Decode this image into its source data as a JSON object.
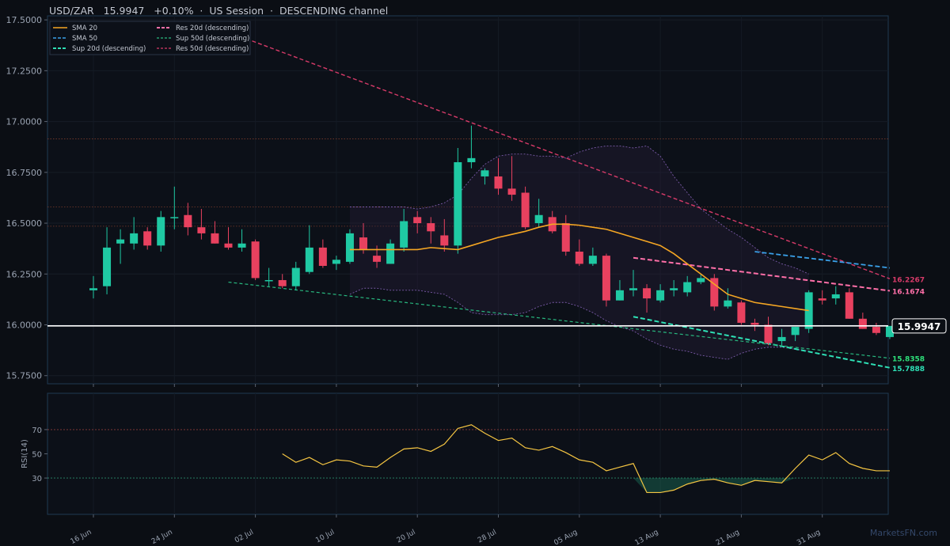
{
  "header": {
    "symbol": "USD/ZAR",
    "price": "15.9947",
    "change": "+0.10%",
    "session": "US Session",
    "channel": "DESCENDING channel"
  },
  "watermark": "MarketsFN.com",
  "chart_data": {
    "type": "candlestick",
    "title": "USD/ZAR  15.9947  +0.10%  ·  US Session  ·  DESCENDING channel",
    "x_tick_labels": [
      "16 Jun",
      "24 Jun",
      "02 Jul",
      "10 Jul",
      "20 Jul",
      "28 Jul",
      "05 Aug",
      "13 Aug",
      "21 Aug",
      "31 Aug"
    ],
    "x_tick_index": [
      0,
      6,
      12,
      18,
      24,
      30,
      36,
      42,
      48,
      54
    ],
    "y_ticks": [
      "15.7500",
      "16.0000",
      "16.2500",
      "16.5000",
      "16.7500",
      "17.0000",
      "17.2500",
      "17.5000"
    ],
    "ylim": [
      15.71,
      17.52
    ],
    "grid": true,
    "legend_position": "top-left",
    "last_price": 15.9947,
    "last_price_label": "15.9947",
    "colors": {
      "up": "#1fc9a3",
      "down": "#e8415f",
      "sma20": "#f5a623",
      "sma50": "#3aa0e8",
      "res20": "#ff6fa8",
      "sup20": "#2ee0b5",
      "res50": "#d63a68",
      "sup50": "#28b87f",
      "bands": "#7a5aa8",
      "price_line": "#ffffff"
    },
    "candles": [
      {
        "o": 16.17,
        "h": 16.24,
        "l": 16.13,
        "c": 16.18
      },
      {
        "o": 16.19,
        "h": 16.48,
        "l": 16.15,
        "c": 16.38
      },
      {
        "o": 16.4,
        "h": 16.47,
        "l": 16.3,
        "c": 16.42
      },
      {
        "o": 16.4,
        "h": 16.53,
        "l": 16.37,
        "c": 16.45
      },
      {
        "o": 16.46,
        "h": 16.48,
        "l": 16.37,
        "c": 16.39
      },
      {
        "o": 16.39,
        "h": 16.56,
        "l": 16.36,
        "c": 16.53
      },
      {
        "o": 16.53,
        "h": 16.68,
        "l": 16.47,
        "c": 16.53
      },
      {
        "o": 16.54,
        "h": 16.6,
        "l": 16.44,
        "c": 16.48
      },
      {
        "o": 16.48,
        "h": 16.57,
        "l": 16.42,
        "c": 16.45
      },
      {
        "o": 16.45,
        "h": 16.51,
        "l": 16.4,
        "c": 16.4
      },
      {
        "o": 16.4,
        "h": 16.48,
        "l": 16.37,
        "c": 16.38
      },
      {
        "o": 16.38,
        "h": 16.47,
        "l": 16.36,
        "c": 16.4
      },
      {
        "o": 16.41,
        "h": 16.42,
        "l": 16.22,
        "c": 16.23
      },
      {
        "o": 16.22,
        "h": 16.28,
        "l": 16.19,
        "c": 16.22
      },
      {
        "o": 16.22,
        "h": 16.25,
        "l": 16.18,
        "c": 16.19
      },
      {
        "o": 16.19,
        "h": 16.31,
        "l": 16.17,
        "c": 16.28
      },
      {
        "o": 16.26,
        "h": 16.49,
        "l": 16.25,
        "c": 16.38
      },
      {
        "o": 16.38,
        "h": 16.42,
        "l": 16.28,
        "c": 16.29
      },
      {
        "o": 16.3,
        "h": 16.34,
        "l": 16.27,
        "c": 16.32
      },
      {
        "o": 16.31,
        "h": 16.47,
        "l": 16.3,
        "c": 16.45
      },
      {
        "o": 16.43,
        "h": 16.5,
        "l": 16.35,
        "c": 16.37
      },
      {
        "o": 16.34,
        "h": 16.39,
        "l": 16.28,
        "c": 16.31
      },
      {
        "o": 16.3,
        "h": 16.42,
        "l": 16.3,
        "c": 16.4
      },
      {
        "o": 16.38,
        "h": 16.57,
        "l": 16.36,
        "c": 16.51
      },
      {
        "o": 16.53,
        "h": 16.56,
        "l": 16.45,
        "c": 16.5
      },
      {
        "o": 16.5,
        "h": 16.53,
        "l": 16.4,
        "c": 16.46
      },
      {
        "o": 16.44,
        "h": 16.52,
        "l": 16.36,
        "c": 16.39
      },
      {
        "o": 16.39,
        "h": 16.87,
        "l": 16.35,
        "c": 16.8
      },
      {
        "o": 16.8,
        "h": 16.98,
        "l": 16.77,
        "c": 16.82
      },
      {
        "o": 16.73,
        "h": 16.77,
        "l": 16.69,
        "c": 16.76
      },
      {
        "o": 16.73,
        "h": 16.82,
        "l": 16.64,
        "c": 16.67
      },
      {
        "o": 16.67,
        "h": 16.83,
        "l": 16.61,
        "c": 16.64
      },
      {
        "o": 16.65,
        "h": 16.68,
        "l": 16.47,
        "c": 16.48
      },
      {
        "o": 16.5,
        "h": 16.62,
        "l": 16.48,
        "c": 16.54
      },
      {
        "o": 16.53,
        "h": 16.56,
        "l": 16.45,
        "c": 16.46
      },
      {
        "o": 16.5,
        "h": 16.54,
        "l": 16.34,
        "c": 16.36
      },
      {
        "o": 16.36,
        "h": 16.42,
        "l": 16.29,
        "c": 16.3
      },
      {
        "o": 16.3,
        "h": 16.38,
        "l": 16.29,
        "c": 16.34
      },
      {
        "o": 16.34,
        "h": 16.35,
        "l": 16.09,
        "c": 16.12
      },
      {
        "o": 16.12,
        "h": 16.22,
        "l": 16.12,
        "c": 16.17
      },
      {
        "o": 16.17,
        "h": 16.27,
        "l": 16.14,
        "c": 16.18
      },
      {
        "o": 16.18,
        "h": 16.2,
        "l": 16.06,
        "c": 16.13
      },
      {
        "o": 16.12,
        "h": 16.2,
        "l": 16.11,
        "c": 16.17
      },
      {
        "o": 16.17,
        "h": 16.22,
        "l": 16.14,
        "c": 16.18
      },
      {
        "o": 16.16,
        "h": 16.24,
        "l": 16.14,
        "c": 16.21
      },
      {
        "o": 16.21,
        "h": 16.25,
        "l": 16.2,
        "c": 16.23
      },
      {
        "o": 16.23,
        "h": 16.25,
        "l": 16.07,
        "c": 16.09
      },
      {
        "o": 16.09,
        "h": 16.18,
        "l": 16.08,
        "c": 16.12
      },
      {
        "o": 16.11,
        "h": 16.12,
        "l": 16.0,
        "c": 16.01
      },
      {
        "o": 16.01,
        "h": 16.03,
        "l": 15.97,
        "c": 16.0
      },
      {
        "o": 16.0,
        "h": 16.04,
        "l": 15.9,
        "c": 15.91
      },
      {
        "o": 15.92,
        "h": 15.98,
        "l": 15.9,
        "c": 15.94
      },
      {
        "o": 15.95,
        "h": 15.99,
        "l": 15.92,
        "c": 15.99
      },
      {
        "o": 15.98,
        "h": 16.17,
        "l": 15.96,
        "c": 16.16
      },
      {
        "o": 16.13,
        "h": 16.17,
        "l": 16.1,
        "c": 16.12
      },
      {
        "o": 16.13,
        "h": 16.19,
        "l": 16.1,
        "c": 16.15
      },
      {
        "o": 16.16,
        "h": 16.18,
        "l": 16.03,
        "c": 16.03
      },
      {
        "o": 16.03,
        "h": 16.06,
        "l": 15.98,
        "c": 15.98
      },
      {
        "o": 15.99,
        "h": 16.01,
        "l": 15.95,
        "c": 15.96
      },
      {
        "o": 15.94,
        "h": 15.99,
        "l": 15.93,
        "c": 15.9947
      }
    ],
    "sma20": {
      "name": "SMA 20",
      "start_index": 19,
      "values": [
        16.37,
        16.37,
        16.37,
        16.37,
        16.37,
        16.37,
        16.38,
        16.375,
        16.37,
        16.39,
        16.41,
        16.43,
        16.445,
        16.46,
        16.48,
        16.495,
        16.495,
        16.49,
        16.48,
        16.47,
        16.45,
        16.43,
        16.41,
        16.39,
        16.35,
        16.3,
        16.25,
        16.2,
        16.15,
        16.13,
        16.11,
        16.1,
        16.09,
        16.08,
        16.07
      ]
    },
    "sma50": {
      "name": "SMA 50",
      "x": [
        49,
        59
      ],
      "y": [
        16.36,
        16.28
      ]
    },
    "bollinger": {
      "start_index": 19,
      "upper": [
        16.58,
        16.58,
        16.58,
        16.58,
        16.58,
        16.57,
        16.58,
        16.6,
        16.64,
        16.72,
        16.79,
        16.83,
        16.84,
        16.84,
        16.83,
        16.83,
        16.82,
        16.85,
        16.87,
        16.88,
        16.88,
        16.87,
        16.88,
        16.83,
        16.73,
        16.65,
        16.57,
        16.52,
        16.47,
        16.43,
        16.38,
        16.33,
        16.3,
        16.28,
        16.25
      ],
      "lower": [
        16.15,
        16.18,
        16.18,
        16.17,
        16.17,
        16.17,
        16.16,
        16.15,
        16.11,
        16.06,
        16.05,
        16.05,
        16.05,
        16.06,
        16.09,
        16.11,
        16.11,
        16.09,
        16.06,
        16.02,
        15.99,
        15.97,
        15.93,
        15.9,
        15.88,
        15.87,
        15.85,
        15.84,
        15.83,
        15.86,
        15.88,
        15.89,
        15.89,
        15.88,
        15.87
      ]
    },
    "levels": [
      {
        "name": "Res 20d (descending)",
        "x": [
          40,
          59
        ],
        "y": [
          16.33,
          16.1674
        ],
        "label": "16.1674"
      },
      {
        "name": "Sup 20d (descending)",
        "x": [
          40,
          59
        ],
        "y": [
          16.04,
          15.7888
        ],
        "label": "15.7888"
      },
      {
        "name": "Sup 50d (descending)",
        "x": [
          10,
          59
        ],
        "y": [
          16.21,
          15.8358
        ],
        "label": "15.8358"
      },
      {
        "name": "Res 50d (descending)",
        "x": [
          10,
          59
        ],
        "y": [
          17.44,
          16.2267
        ],
        "label": "16.2267"
      }
    ],
    "horizontal_refs": [
      16.915,
      16.58,
      16.485
    ],
    "legend": [
      "SMA 20",
      "SMA 50",
      "Sup 20d (descending)",
      "Res 20d (descending)",
      "Sup 50d (descending)",
      "Res 50d (descending)"
    ],
    "rsi": {
      "ylabel": "RSI(14)",
      "yticks": [
        "30",
        "50",
        "70"
      ],
      "ylim": [
        0,
        100
      ],
      "overbought": 70,
      "oversold": 30,
      "start_index": 14,
      "values": [
        50,
        43,
        47,
        41,
        45,
        44,
        40,
        39,
        47,
        54,
        55,
        52,
        58,
        71,
        74,
        67,
        61,
        63,
        55,
        53,
        56,
        51,
        45,
        43,
        36,
        39,
        42,
        18,
        18,
        20,
        25,
        28,
        29,
        26,
        24,
        28,
        27,
        26,
        38,
        49,
        45,
        51,
        42,
        38,
        36,
        36
      ]
    }
  }
}
